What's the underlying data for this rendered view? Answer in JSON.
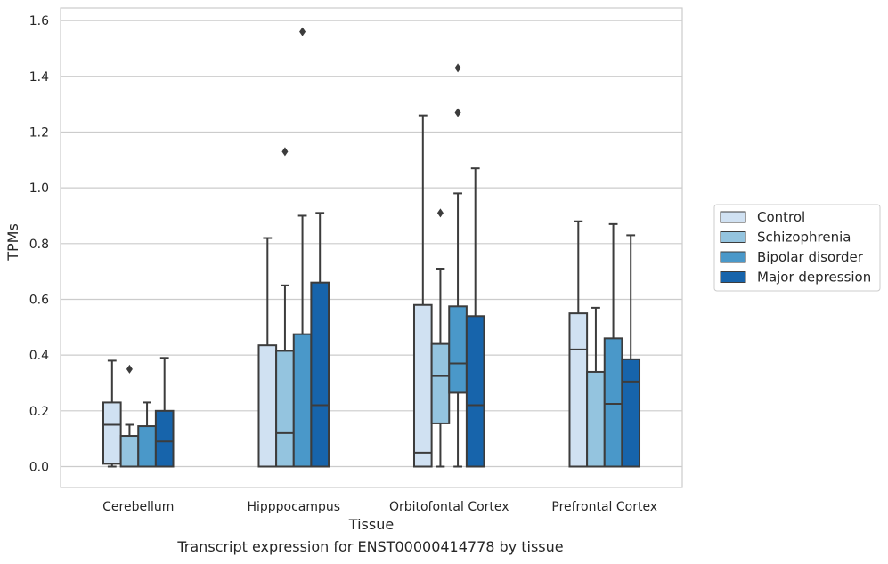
{
  "chart_data": {
    "type": "boxplot",
    "title": "",
    "xlabel": "Tissue",
    "ylabel": "TPMs",
    "ylim": [
      -0.075,
      1.645
    ],
    "yticks": [
      "0.0",
      "0.2",
      "0.4",
      "0.6",
      "0.8",
      "1.0",
      "1.2",
      "1.4",
      "1.6"
    ],
    "grid": true,
    "legend_position": "right",
    "categories": [
      "Cerebellum",
      "Hipppocampus",
      "Orbitofontal Cortex",
      "Prefrontal Cortex"
    ],
    "series": [
      {
        "name": "Control",
        "color": "#d0e1f2",
        "boxes": [
          {
            "low": 0.0,
            "q1": 0.01,
            "median": 0.15,
            "q3": 0.23,
            "high": 0.38,
            "outliers": []
          },
          {
            "low": 0.0,
            "q1": 0.0,
            "median": 0.0,
            "q3": 0.435,
            "high": 0.82,
            "outliers": []
          },
          {
            "low": 0.0,
            "q1": 0.0,
            "median": 0.05,
            "q3": 0.58,
            "high": 1.26,
            "outliers": []
          },
          {
            "low": 0.0,
            "q1": 0.0,
            "median": 0.42,
            "q3": 0.55,
            "high": 0.88,
            "outliers": []
          }
        ]
      },
      {
        "name": "Schizophrenia",
        "color": "#94c4df",
        "boxes": [
          {
            "low": 0.0,
            "q1": 0.0,
            "median": 0.0,
            "q3": 0.11,
            "high": 0.15,
            "outliers": [
              0.35
            ]
          },
          {
            "low": 0.0,
            "q1": 0.0,
            "median": 0.12,
            "q3": 0.415,
            "high": 0.65,
            "outliers": [
              1.13
            ]
          },
          {
            "low": 0.0,
            "q1": 0.155,
            "median": 0.325,
            "q3": 0.44,
            "high": 0.71,
            "outliers": [
              0.91
            ]
          },
          {
            "low": 0.0,
            "q1": 0.0,
            "median": 0.0,
            "q3": 0.34,
            "high": 0.57,
            "outliers": []
          }
        ]
      },
      {
        "name": "Bipolar disorder",
        "color": "#4a98c9",
        "boxes": [
          {
            "low": 0.0,
            "q1": 0.0,
            "median": 0.0,
            "q3": 0.145,
            "high": 0.23,
            "outliers": []
          },
          {
            "low": 0.0,
            "q1": 0.0,
            "median": 0.0,
            "q3": 0.475,
            "high": 0.9,
            "outliers": [
              1.56
            ]
          },
          {
            "low": 0.0,
            "q1": 0.265,
            "median": 0.37,
            "q3": 0.575,
            "high": 0.98,
            "outliers": [
              1.27,
              1.43
            ]
          },
          {
            "low": 0.0,
            "q1": 0.0,
            "median": 0.225,
            "q3": 0.46,
            "high": 0.87,
            "outliers": []
          }
        ]
      },
      {
        "name": "Major depression",
        "color": "#1764ab",
        "boxes": [
          {
            "low": 0.0,
            "q1": 0.0,
            "median": 0.09,
            "q3": 0.2,
            "high": 0.39,
            "outliers": []
          },
          {
            "low": 0.0,
            "q1": 0.0,
            "median": 0.22,
            "q3": 0.66,
            "high": 0.91,
            "outliers": []
          },
          {
            "low": 0.0,
            "q1": 0.0,
            "median": 0.22,
            "q3": 0.54,
            "high": 1.07,
            "outliers": []
          },
          {
            "low": 0.0,
            "q1": 0.0,
            "median": 0.305,
            "q3": 0.385,
            "high": 0.83,
            "outliers": []
          }
        ]
      }
    ]
  },
  "caption": "Transcript expression for ENST00000414778 by tissue"
}
